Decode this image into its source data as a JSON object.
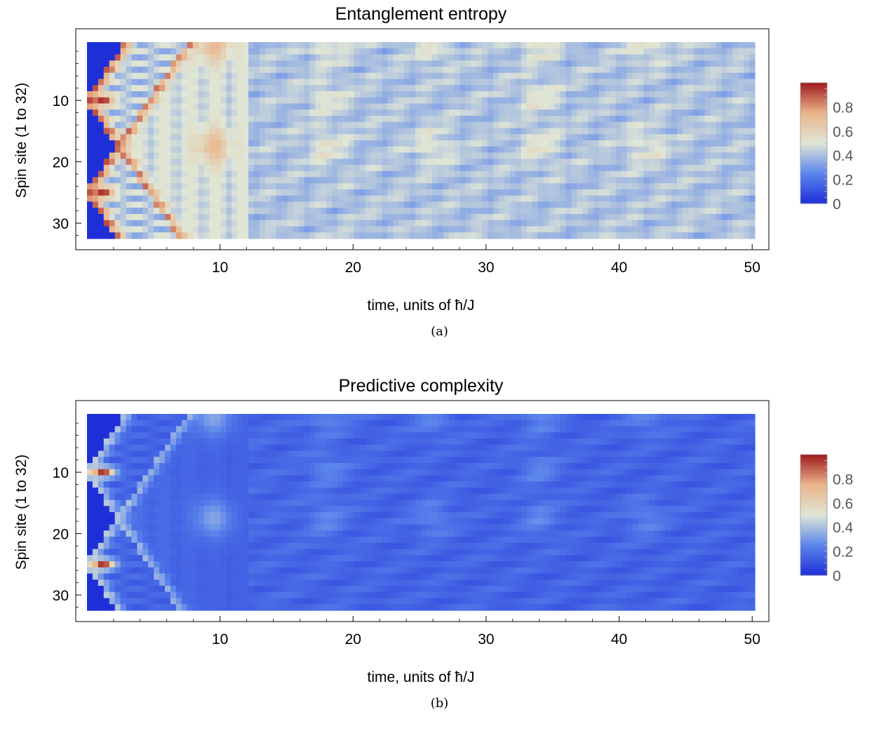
{
  "chart_data": [
    {
      "type": "heatmap",
      "title": "Entanglement entropy",
      "xlabel": "time, units of ħ/J",
      "ylabel": "Spin site (1 to 32)",
      "xticks": [
        "10",
        "20",
        "30",
        "40",
        "50"
      ],
      "yticks": [
        "10",
        "20",
        "30"
      ],
      "xlim": [
        0,
        50
      ],
      "ylim": [
        1,
        32
      ],
      "sources": [
        10,
        25
      ],
      "colorbar": {
        "ticks": [
          "0",
          "0.2",
          "0.4",
          "0.6",
          "0.8"
        ],
        "range": [
          0,
          1
        ]
      },
      "colors": [
        "#1f2fd8",
        "#5c86ec",
        "#e0e6d6",
        "#eab48a",
        "#a0191e"
      ],
      "caption": "(a)"
    },
    {
      "type": "heatmap",
      "title": "Predictive complexity",
      "xlabel": "time, units of ħ/J",
      "ylabel": "Spin site (1 to 32)",
      "xticks": [
        "10",
        "20",
        "30",
        "40",
        "50"
      ],
      "yticks": [
        "10",
        "20",
        "30"
      ],
      "xlim": [
        0,
        50
      ],
      "ylim": [
        1,
        32
      ],
      "sources": [
        10,
        25
      ],
      "colorbar": {
        "ticks": [
          "0",
          "0.2",
          "0.4",
          "0.6",
          "0.8"
        ],
        "range": [
          0,
          1
        ]
      },
      "colors": [
        "#1f2fd8",
        "#5c86ec",
        "#e0e6d6",
        "#eab48a",
        "#a0191e"
      ],
      "caption": "(b)"
    }
  ]
}
